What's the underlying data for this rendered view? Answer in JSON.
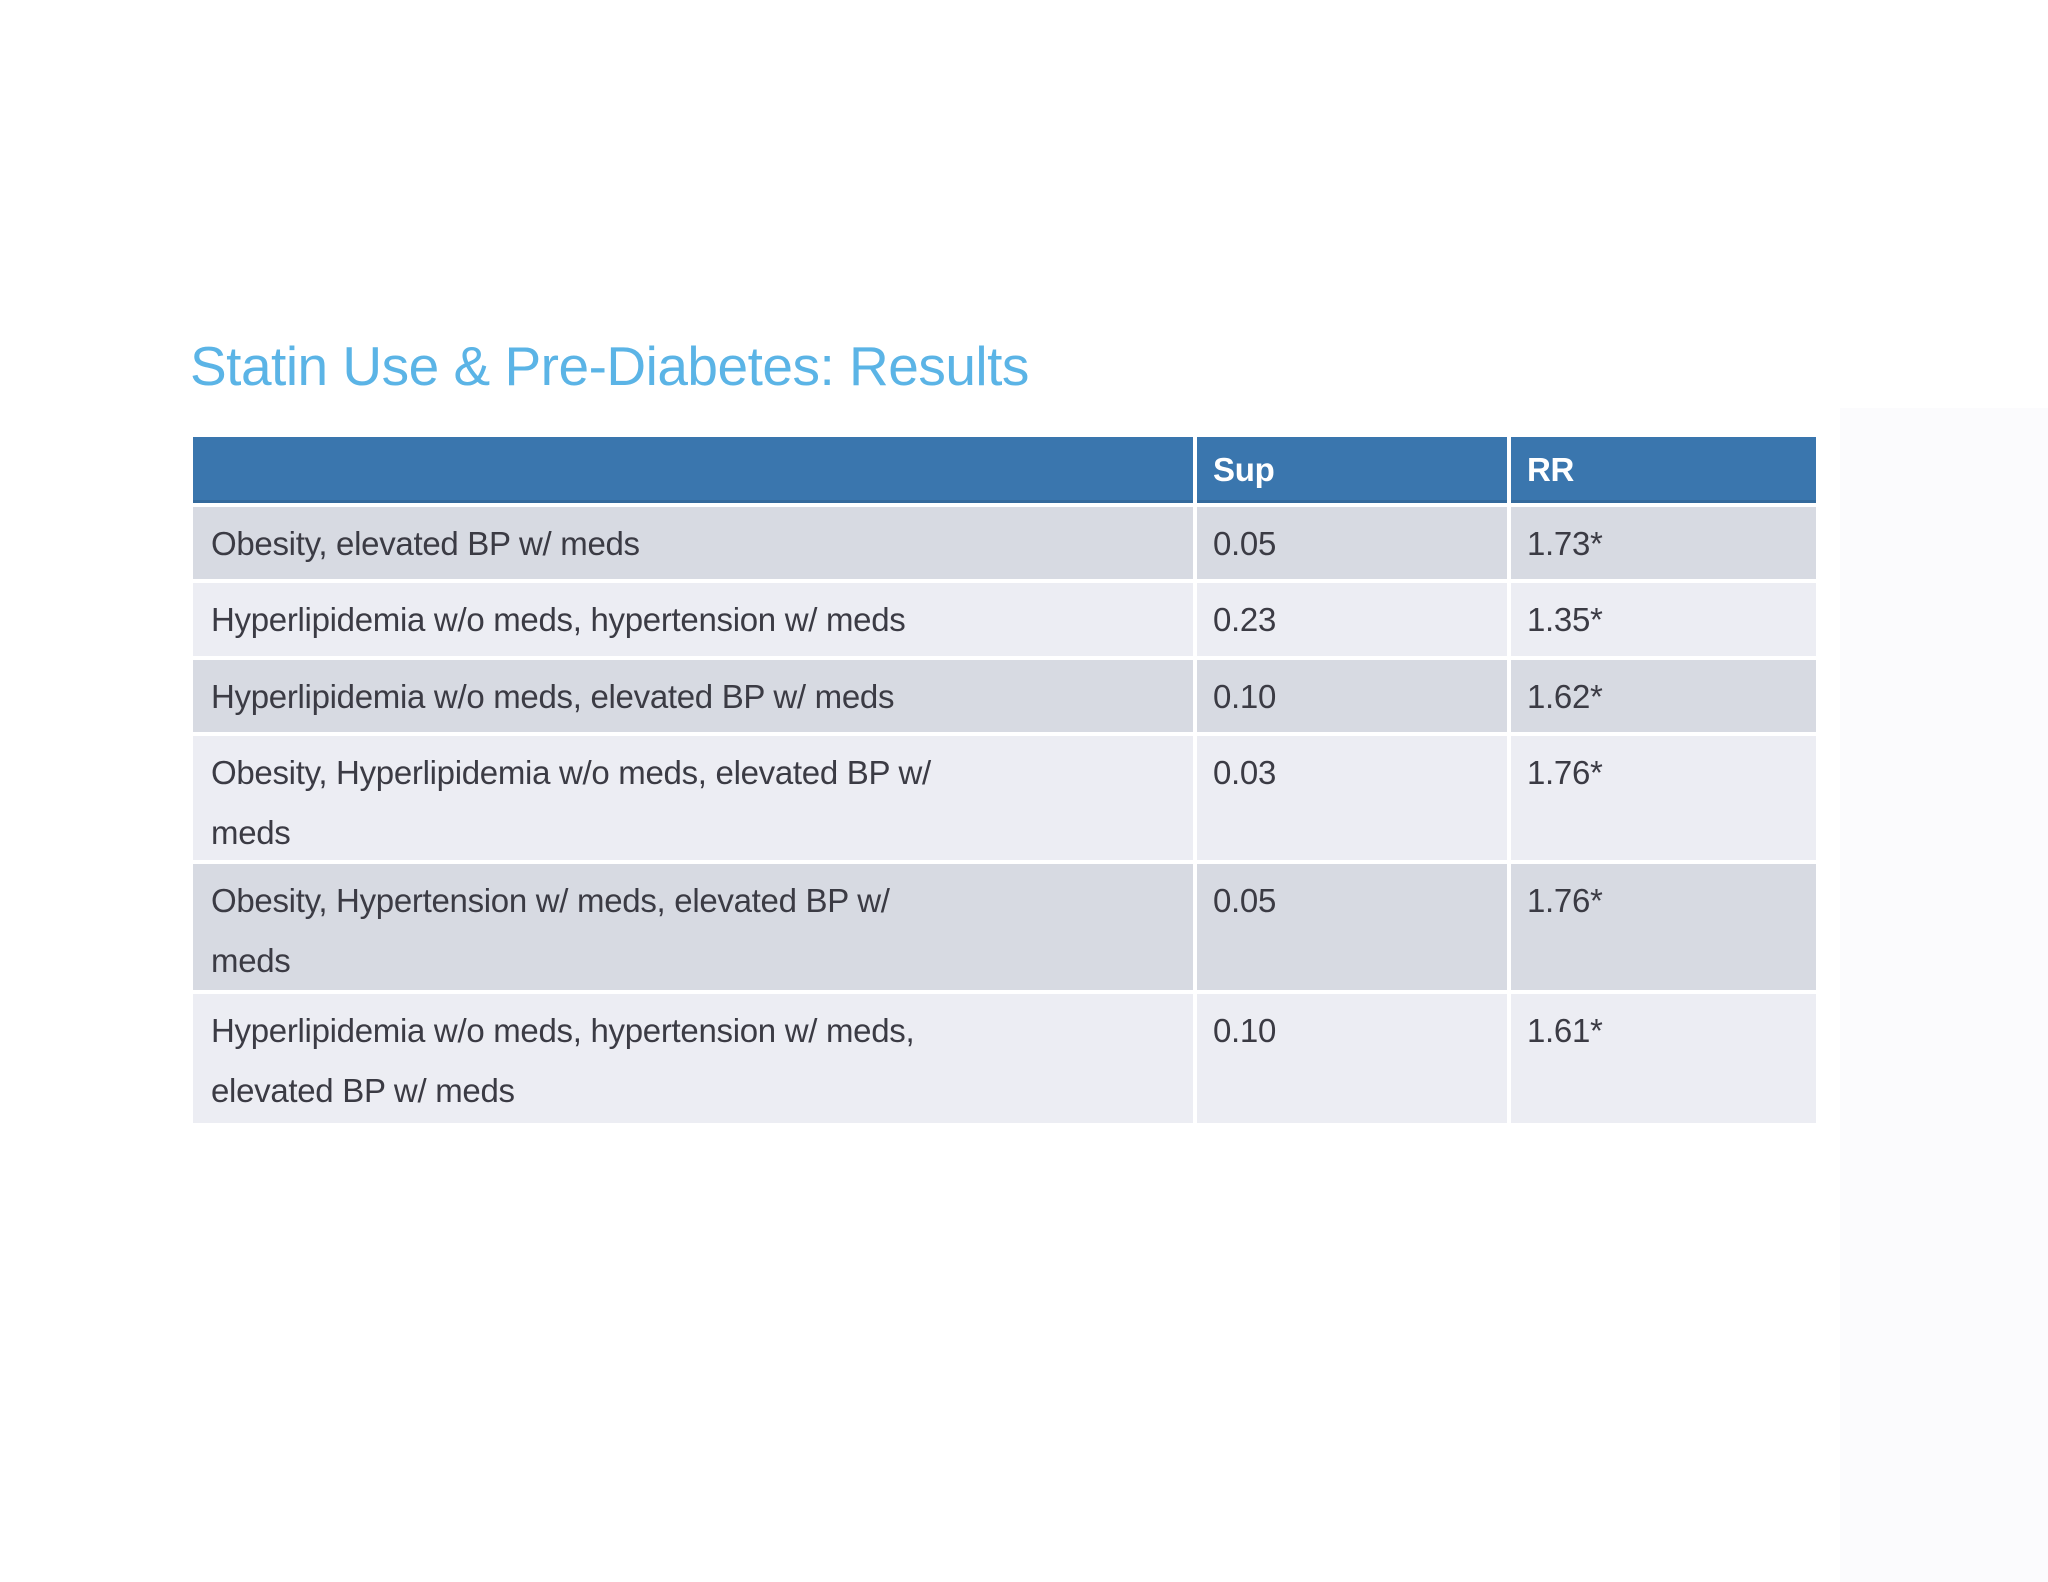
{
  "slide": {
    "title": "Statin Use & Pre-Diabetes: Results",
    "title_color": "#5bb4e6",
    "background_color": "#ffffff"
  },
  "table": {
    "header": {
      "label_col": "",
      "sup_col": "Sup",
      "rr_col": "RR",
      "header_bg": "#3a76ae",
      "header_text_color": "#ffffff"
    },
    "row_colors": {
      "odd": "#d7dae2",
      "even": "#ecedf3"
    },
    "rows": [
      {
        "label": "Obesity, elevated BP w/ meds",
        "sup": "0.05",
        "rr": "1.73*"
      },
      {
        "label": "Hyperlipidemia w/o meds, hypertension w/ meds",
        "sup": "0.23",
        "rr": "1.35*"
      },
      {
        "label": "Hyperlipidemia w/o meds, elevated BP w/ meds",
        "sup": "0.10",
        "rr": "1.62*"
      },
      {
        "label": "Obesity, Hyperlipidemia w/o meds, elevated BP w/\nmeds",
        "sup": "0.03",
        "rr": "1.76*"
      },
      {
        "label": "Obesity, Hypertension w/ meds, elevated BP w/\nmeds",
        "sup": "0.05",
        "rr": "1.76*"
      },
      {
        "label": "Hyperlipidemia w/o meds, hypertension w/ meds,\nelevated BP w/ meds",
        "sup": "0.10",
        "rr": "1.61*"
      }
    ]
  }
}
